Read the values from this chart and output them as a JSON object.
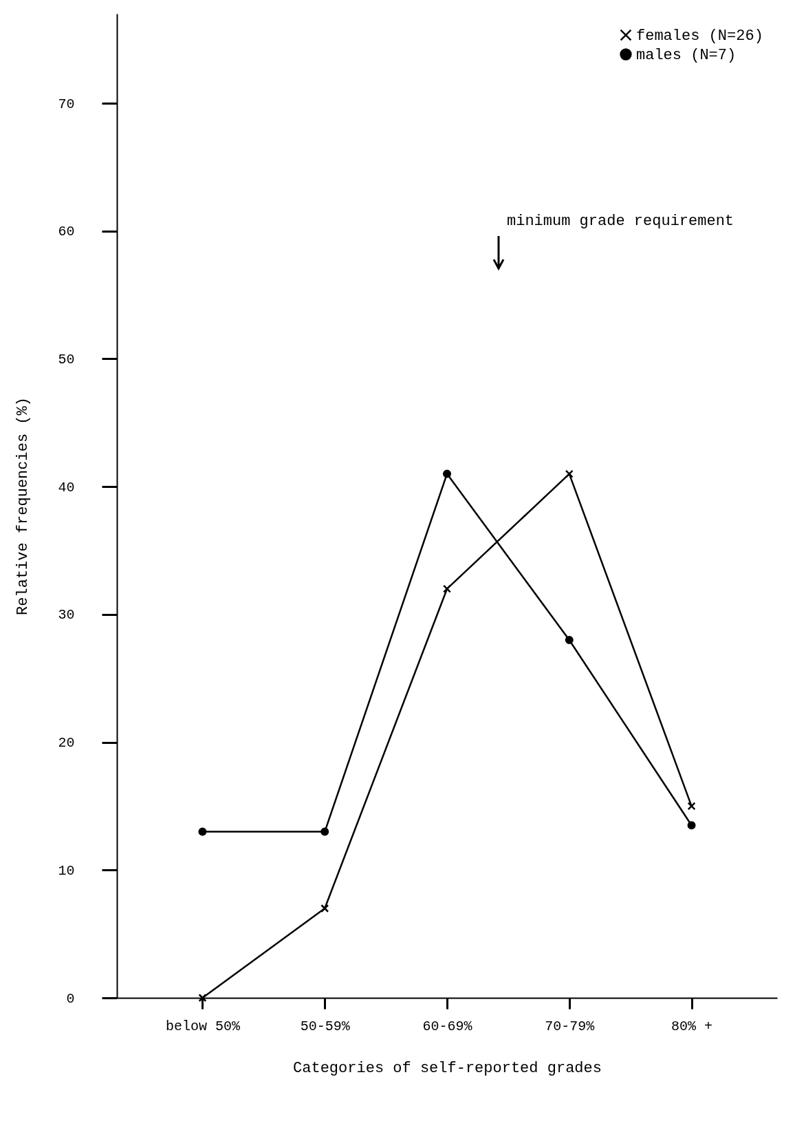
{
  "chart_data": {
    "type": "line",
    "xlabel": "Categories of self-reported grades",
    "ylabel": "Relative frequencies (%)",
    "categories": [
      "below 50%",
      "50-59%",
      "60-69%",
      "70-79%",
      "80% +"
    ],
    "series": [
      {
        "name": "females (N=26)",
        "color": "#000000",
        "marker": "cross",
        "values": [
          0,
          7,
          32,
          41,
          15
        ]
      },
      {
        "name": "males (N=7)",
        "color": "#000000",
        "marker": "circle",
        "values": [
          13,
          13,
          41,
          28,
          13.5
        ]
      }
    ],
    "ylim": [
      0,
      77
    ],
    "yticks": [
      0,
      10,
      20,
      30,
      40,
      50,
      60,
      70
    ],
    "grid": false,
    "legend": "top right",
    "line_style": "solid",
    "annotations": [
      "minimum grade requirement"
    ]
  }
}
